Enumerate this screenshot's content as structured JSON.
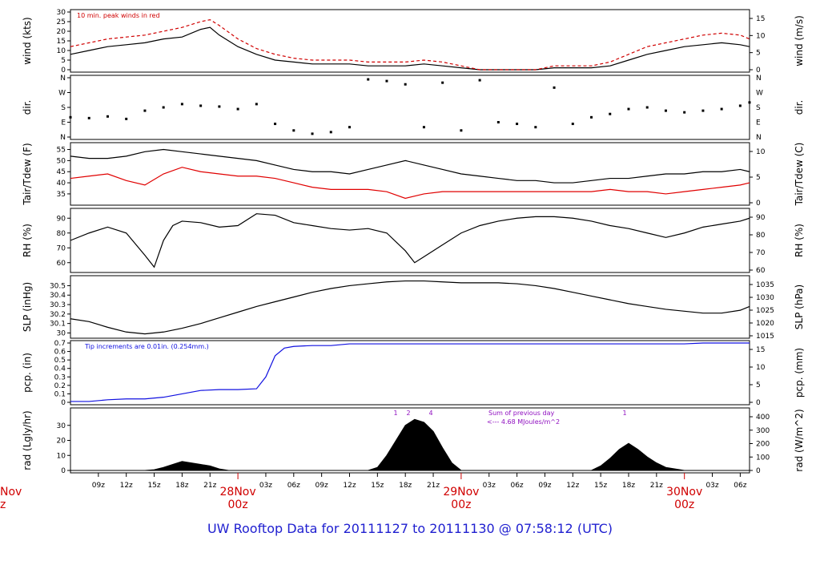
{
  "footer": {
    "title": "UW Rooftop Data for 20111127  to  20111130 @ 07:58:12  (UTC)"
  },
  "colors": {
    "primary": "#000000",
    "peak": "#d00000",
    "dewpoint": "#e00000",
    "precip": "#1010e0",
    "annotation_purple": "#9010c0",
    "date_red": "#d00000",
    "title_blue": "#2020d0"
  },
  "x_axis": {
    "ticks": [
      "09z",
      "12z",
      "15z",
      "18z",
      "21z",
      "03z",
      "06z",
      "09z",
      "12z",
      "15z",
      "18z",
      "21z",
      "03z",
      "06z",
      "09z",
      "12z",
      "15z",
      "18z",
      "21z",
      "03z",
      "06z"
    ],
    "date_labels": [
      {
        "date": "28Nov",
        "hour": "00z"
      },
      {
        "date": "29Nov",
        "hour": "00z"
      },
      {
        "date": "30Nov",
        "hour": "00z"
      }
    ],
    "left_cut_date": "Nov",
    "left_cut_hour": "z"
  },
  "chart_data": [
    {
      "id": "wind",
      "type": "line",
      "ylabel": "wind (kts)",
      "ylabel_right": "wind (m/s)",
      "yticks": [
        0,
        5,
        10,
        15,
        20,
        25,
        30
      ],
      "yticks_right": [
        0,
        5,
        10,
        15
      ],
      "ylim": [
        0,
        30
      ],
      "annotation": "10 min. peak winds in red",
      "series": [
        {
          "color": "#000000",
          "x": [
            6,
            8,
            10,
            12,
            14,
            16,
            18,
            20,
            21,
            22,
            24,
            26,
            28,
            30,
            32,
            34,
            36,
            38,
            40,
            42,
            44,
            46,
            48,
            50,
            52,
            54,
            56,
            58,
            60,
            62,
            64,
            66,
            68,
            70,
            72,
            74,
            76,
            78,
            79
          ],
          "y": [
            8,
            10,
            12,
            13,
            14,
            16,
            17,
            21,
            22,
            18,
            12,
            8,
            5,
            4,
            3,
            3,
            3,
            2,
            2,
            2,
            3,
            2,
            1,
            0,
            0,
            0,
            0,
            1,
            1,
            1,
            2,
            5,
            8,
            10,
            12,
            13,
            14,
            13,
            12
          ]
        },
        {
          "color": "#d00000",
          "x": [
            6,
            8,
            10,
            12,
            14,
            16,
            18,
            20,
            21,
            22,
            24,
            26,
            28,
            30,
            32,
            34,
            36,
            38,
            40,
            42,
            44,
            46,
            48,
            50,
            52,
            54,
            56,
            58,
            60,
            62,
            64,
            66,
            68,
            70,
            72,
            74,
            76,
            78,
            79
          ],
          "y": [
            12,
            14,
            16,
            17,
            18,
            20,
            22,
            25,
            26,
            23,
            16,
            11,
            8,
            6,
            5,
            5,
            5,
            4,
            4,
            4,
            5,
            4,
            2,
            0,
            0,
            0,
            0,
            2,
            2,
            2,
            4,
            8,
            12,
            14,
            16,
            18,
            19,
            18,
            16
          ]
        }
      ]
    },
    {
      "id": "dir",
      "type": "scatter",
      "ylabel": "dir.",
      "ylabel_right": "dir.",
      "ytick_labels": [
        "N",
        "E",
        "S",
        "W",
        "N"
      ],
      "ylim": [
        0,
        360
      ],
      "series": [
        {
          "color": "#000000",
          "x": [
            6,
            8,
            10,
            12,
            14,
            16,
            18,
            20,
            22,
            24,
            26,
            28,
            30,
            32,
            34,
            36,
            38,
            40,
            42,
            44,
            46,
            48,
            50,
            52,
            54,
            56,
            58,
            60,
            62,
            64,
            66,
            68,
            70,
            72,
            74,
            76,
            78,
            79
          ],
          "y": [
            120,
            115,
            125,
            110,
            160,
            180,
            200,
            190,
            185,
            170,
            200,
            80,
            40,
            20,
            30,
            60,
            350,
            340,
            320,
            60,
            330,
            40,
            345,
            90,
            80,
            60,
            300,
            80,
            120,
            140,
            170,
            180,
            160,
            150,
            160,
            170,
            190,
            210
          ]
        }
      ]
    },
    {
      "id": "temp",
      "type": "line",
      "ylabel": "Tair/Tdew (F)",
      "ylabel_right": "Tair/Tdew (C)",
      "yticks": [
        35,
        40,
        45,
        50,
        55
      ],
      "yticks_right": [
        0,
        5,
        10
      ],
      "ylim": [
        31,
        57
      ],
      "series": [
        {
          "color": "#000000",
          "x": [
            6,
            8,
            10,
            12,
            14,
            16,
            18,
            20,
            22,
            24,
            26,
            28,
            30,
            32,
            34,
            36,
            38,
            40,
            42,
            44,
            46,
            48,
            50,
            52,
            54,
            56,
            58,
            60,
            62,
            64,
            66,
            68,
            70,
            72,
            74,
            76,
            78,
            79
          ],
          "y": [
            52,
            51,
            51,
            52,
            54,
            55,
            54,
            53,
            52,
            51,
            50,
            48,
            46,
            45,
            45,
            44,
            46,
            48,
            50,
            48,
            46,
            44,
            43,
            42,
            41,
            41,
            40,
            40,
            41,
            42,
            42,
            43,
            44,
            44,
            45,
            45,
            46,
            45
          ]
        },
        {
          "color": "#e00000",
          "x": [
            6,
            8,
            10,
            12,
            14,
            16,
            18,
            20,
            22,
            24,
            26,
            28,
            30,
            32,
            34,
            36,
            38,
            40,
            42,
            44,
            46,
            48,
            50,
            52,
            54,
            56,
            58,
            60,
            62,
            64,
            66,
            68,
            70,
            72,
            74,
            76,
            78,
            79
          ],
          "y": [
            42,
            43,
            44,
            41,
            39,
            44,
            47,
            45,
            44,
            43,
            43,
            42,
            40,
            38,
            37,
            37,
            37,
            36,
            33,
            35,
            36,
            36,
            36,
            36,
            36,
            36,
            36,
            36,
            36,
            37,
            36,
            36,
            35,
            36,
            37,
            38,
            39,
            40
          ]
        }
      ]
    },
    {
      "id": "rh",
      "type": "line",
      "ylabel": "RH (%)",
      "ylabel_right": "RH (%)",
      "yticks": [
        60,
        70,
        80,
        90
      ],
      "yticks_right": [
        60,
        70,
        80,
        90
      ],
      "ylim": [
        55,
        95
      ],
      "series": [
        {
          "color": "#000000",
          "x": [
            6,
            8,
            10,
            12,
            14,
            15,
            16,
            17,
            18,
            20,
            22,
            24,
            26,
            28,
            30,
            32,
            34,
            36,
            38,
            40,
            42,
            43,
            44,
            46,
            48,
            50,
            52,
            54,
            56,
            58,
            60,
            62,
            64,
            66,
            68,
            70,
            72,
            74,
            76,
            78,
            79
          ],
          "y": [
            75,
            80,
            84,
            80,
            65,
            57,
            75,
            85,
            88,
            87,
            84,
            85,
            93,
            92,
            87,
            85,
            83,
            82,
            83,
            80,
            68,
            60,
            64,
            72,
            80,
            85,
            88,
            90,
            91,
            91,
            90,
            88,
            85,
            83,
            80,
            77,
            80,
            84,
            86,
            88,
            90
          ]
        }
      ]
    },
    {
      "id": "slp",
      "type": "line",
      "ylabel": "SLP (inHg)",
      "ylabel_right": "SLP (hPa)",
      "yticks": [
        30.0,
        30.1,
        30.2,
        30.3,
        30.4,
        30.5
      ],
      "yticks_right": [
        1015,
        1020,
        1025,
        1030,
        1035
      ],
      "ylim": [
        29.97,
        30.58
      ],
      "series": [
        {
          "color": "#000000",
          "x": [
            6,
            8,
            10,
            12,
            14,
            16,
            18,
            20,
            22,
            24,
            26,
            28,
            30,
            32,
            34,
            36,
            38,
            40,
            42,
            44,
            46,
            48,
            50,
            52,
            54,
            56,
            58,
            60,
            62,
            64,
            66,
            68,
            70,
            72,
            74,
            76,
            78,
            79
          ],
          "y": [
            30.15,
            30.12,
            30.06,
            30.01,
            29.99,
            30.01,
            30.05,
            30.1,
            30.16,
            30.22,
            30.28,
            30.33,
            30.38,
            30.43,
            30.47,
            30.5,
            30.52,
            30.54,
            30.55,
            30.55,
            30.54,
            30.53,
            30.53,
            30.53,
            30.52,
            30.5,
            30.47,
            30.43,
            30.39,
            30.35,
            30.31,
            30.28,
            30.25,
            30.23,
            30.21,
            30.21,
            30.24,
            30.28
          ]
        }
      ]
    },
    {
      "id": "pcp",
      "type": "line",
      "ylabel": "pcp. (in)",
      "ylabel_right": "pcp. (mm)",
      "yticks": [
        0.0,
        0.1,
        0.2,
        0.3,
        0.4,
        0.5,
        0.6,
        0.7
      ],
      "yticks_right": [
        0,
        5,
        10,
        15
      ],
      "ylim": [
        0,
        0.7
      ],
      "annotation": "Tip increments are 0.01in. (0.254mm.)",
      "series": [
        {
          "color": "#1010e0",
          "x": [
            6,
            8,
            10,
            12,
            14,
            16,
            18,
            20,
            22,
            24,
            26,
            27,
            28,
            29,
            30,
            32,
            34,
            36,
            38,
            40,
            42,
            44,
            46,
            48,
            50,
            52,
            54,
            56,
            58,
            60,
            62,
            64,
            66,
            68,
            70,
            72,
            74,
            76,
            78,
            79
          ],
          "y": [
            0.01,
            0.01,
            0.03,
            0.04,
            0.04,
            0.06,
            0.1,
            0.14,
            0.15,
            0.15,
            0.16,
            0.3,
            0.55,
            0.64,
            0.66,
            0.67,
            0.67,
            0.69,
            0.69,
            0.69,
            0.69,
            0.69,
            0.69,
            0.69,
            0.69,
            0.69,
            0.69,
            0.69,
            0.69,
            0.69,
            0.69,
            0.69,
            0.69,
            0.69,
            0.69,
            0.69,
            0.7,
            0.7,
            0.7,
            0.7
          ]
        }
      ]
    },
    {
      "id": "rad",
      "type": "area",
      "ylabel": "rad (Lgly/hr)",
      "ylabel_right": "rad (W/m^2)",
      "yticks": [
        0,
        10,
        20,
        30
      ],
      "yticks_right": [
        0,
        100,
        200,
        300,
        400
      ],
      "ylim": [
        0,
        40
      ],
      "annotation_line1": "Sum of previous day",
      "annotation_line2": "<--- 4.68 MJoules/m^2",
      "peak_markers": [
        "1",
        "2",
        "4",
        "1"
      ],
      "series": [
        {
          "color": "#000000",
          "x": [
            6,
            14,
            15,
            16,
            17,
            18,
            19,
            20,
            21,
            22,
            23,
            38,
            39,
            40,
            41,
            42,
            43,
            44,
            45,
            46,
            47,
            48,
            62,
            63,
            64,
            65,
            66,
            67,
            68,
            69,
            70,
            71,
            72,
            79
          ],
          "y": [
            0,
            0,
            0.5,
            2,
            4,
            6,
            5,
            4,
            3,
            1,
            0,
            0,
            2,
            10,
            20,
            30,
            34,
            32,
            26,
            15,
            5,
            0,
            0,
            3,
            8,
            14,
            18,
            14,
            9,
            5,
            2,
            1,
            0,
            0
          ]
        }
      ]
    }
  ]
}
